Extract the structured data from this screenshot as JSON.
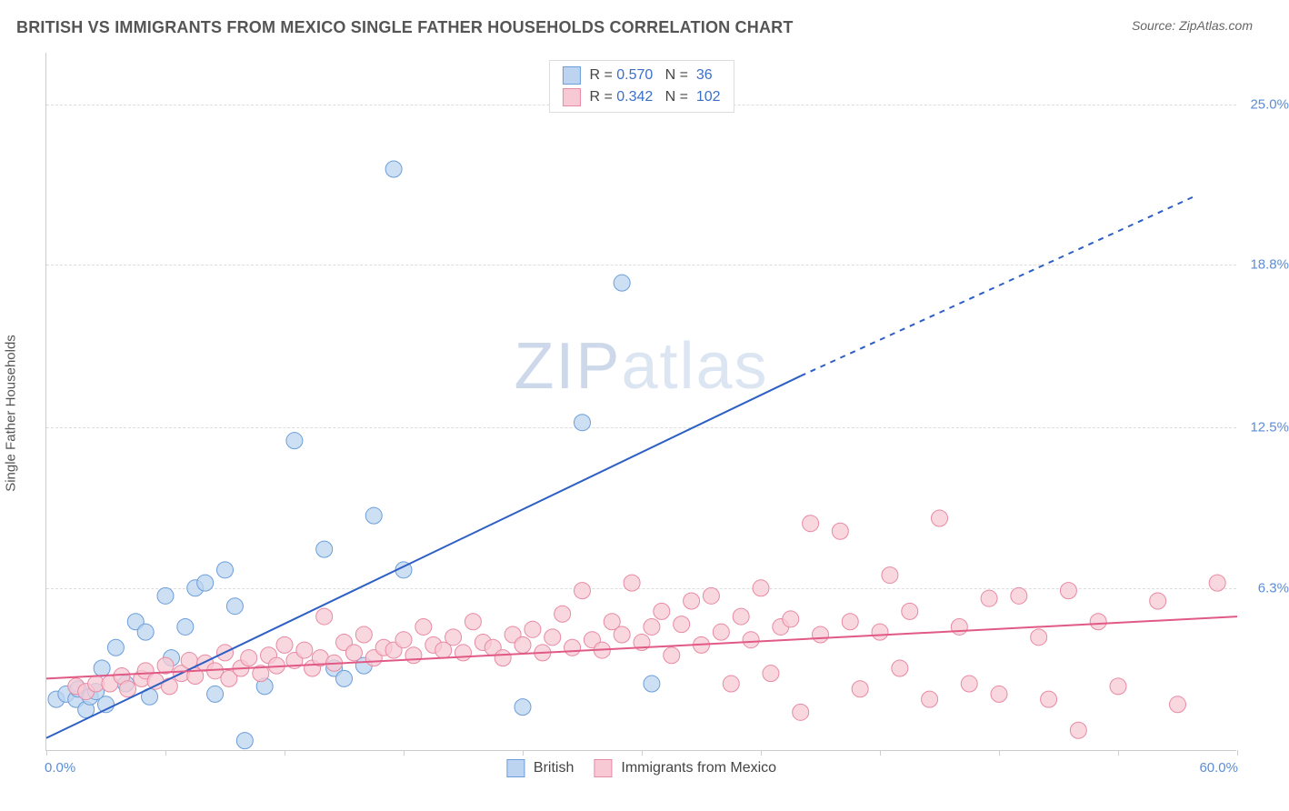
{
  "header": {
    "title": "BRITISH VS IMMIGRANTS FROM MEXICO SINGLE FATHER HOUSEHOLDS CORRELATION CHART",
    "source": "Source: ZipAtlas.com"
  },
  "chart": {
    "type": "scatter",
    "ylabel": "Single Father Households",
    "watermark_zip": "ZIP",
    "watermark_atlas": "atlas",
    "background_color": "#ffffff",
    "grid_color": "#dddddd",
    "axis_color": "#cccccc",
    "xlim": [
      0,
      60
    ],
    "ylim": [
      0,
      27
    ],
    "yticks": [
      {
        "v": 6.3,
        "label": "6.3%"
      },
      {
        "v": 12.5,
        "label": "12.5%"
      },
      {
        "v": 18.8,
        "label": "18.8%"
      },
      {
        "v": 25.0,
        "label": "25.0%"
      }
    ],
    "xtick_marks": [
      0,
      6,
      12,
      18,
      24,
      30,
      36,
      42,
      48,
      54,
      60
    ],
    "xlabel_start": "0.0%",
    "xlabel_end": "60.0%",
    "series": [
      {
        "id": "british",
        "label": "British",
        "marker_fill": "#bcd4ef",
        "marker_stroke": "#6b9edb",
        "marker_opacity": 0.75,
        "marker_r": 9,
        "line_color": "#2d5fc4",
        "line_width": 2,
        "R": "0.570",
        "N": "36",
        "trend": {
          "x1": 0,
          "y1": 0.5,
          "x2": 38,
          "y2": 14.5,
          "x_dash_from": 38,
          "x2d": 58,
          "y2d": 21.5
        },
        "points": [
          [
            0.5,
            2.0
          ],
          [
            1.0,
            2.2
          ],
          [
            1.5,
            2.0
          ],
          [
            1.6,
            2.4
          ],
          [
            2.0,
            1.6
          ],
          [
            2.2,
            2.1
          ],
          [
            2.5,
            2.3
          ],
          [
            2.8,
            3.2
          ],
          [
            3.0,
            1.8
          ],
          [
            3.5,
            4.0
          ],
          [
            4.0,
            2.6
          ],
          [
            4.5,
            5.0
          ],
          [
            5.0,
            4.6
          ],
          [
            5.2,
            2.1
          ],
          [
            6.0,
            6.0
          ],
          [
            6.3,
            3.6
          ],
          [
            7.0,
            4.8
          ],
          [
            7.5,
            6.3
          ],
          [
            8.0,
            6.5
          ],
          [
            8.5,
            2.2
          ],
          [
            9.0,
            7.0
          ],
          [
            9.5,
            5.6
          ],
          [
            10.0,
            0.4
          ],
          [
            11.0,
            2.5
          ],
          [
            12.5,
            12.0
          ],
          [
            14.0,
            7.8
          ],
          [
            14.5,
            3.2
          ],
          [
            15.0,
            2.8
          ],
          [
            16.0,
            3.3
          ],
          [
            16.5,
            9.1
          ],
          [
            17.5,
            22.5
          ],
          [
            18.0,
            7.0
          ],
          [
            24.0,
            1.7
          ],
          [
            27.0,
            12.7
          ],
          [
            29.0,
            18.1
          ],
          [
            30.5,
            2.6
          ]
        ]
      },
      {
        "id": "mexico",
        "label": "Immigrants from Mexico",
        "marker_fill": "#f7c9d4",
        "marker_stroke": "#e88aa3",
        "marker_opacity": 0.75,
        "marker_r": 9,
        "line_color": "#e05a85",
        "line_width": 2,
        "R": "0.342",
        "N": "102",
        "trend": {
          "x1": 0,
          "y1": 2.8,
          "x2": 60,
          "y2": 5.2
        },
        "points": [
          [
            1.5,
            2.5
          ],
          [
            2.0,
            2.3
          ],
          [
            2.5,
            2.6
          ],
          [
            3.2,
            2.6
          ],
          [
            3.8,
            2.9
          ],
          [
            4.1,
            2.4
          ],
          [
            4.8,
            2.8
          ],
          [
            5.0,
            3.1
          ],
          [
            5.5,
            2.7
          ],
          [
            6.0,
            3.3
          ],
          [
            6.2,
            2.5
          ],
          [
            6.8,
            3.0
          ],
          [
            7.2,
            3.5
          ],
          [
            7.5,
            2.9
          ],
          [
            8.0,
            3.4
          ],
          [
            8.5,
            3.1
          ],
          [
            9.0,
            3.8
          ],
          [
            9.2,
            2.8
          ],
          [
            9.8,
            3.2
          ],
          [
            10.2,
            3.6
          ],
          [
            10.8,
            3.0
          ],
          [
            11.2,
            3.7
          ],
          [
            11.6,
            3.3
          ],
          [
            12.0,
            4.1
          ],
          [
            12.5,
            3.5
          ],
          [
            13.0,
            3.9
          ],
          [
            13.4,
            3.2
          ],
          [
            13.8,
            3.6
          ],
          [
            14.0,
            5.2
          ],
          [
            14.5,
            3.4
          ],
          [
            15.0,
            4.2
          ],
          [
            15.5,
            3.8
          ],
          [
            16.0,
            4.5
          ],
          [
            16.5,
            3.6
          ],
          [
            17.0,
            4.0
          ],
          [
            17.5,
            3.9
          ],
          [
            18.0,
            4.3
          ],
          [
            18.5,
            3.7
          ],
          [
            19.0,
            4.8
          ],
          [
            19.5,
            4.1
          ],
          [
            20.0,
            3.9
          ],
          [
            20.5,
            4.4
          ],
          [
            21.0,
            3.8
          ],
          [
            21.5,
            5.0
          ],
          [
            22.0,
            4.2
          ],
          [
            22.5,
            4.0
          ],
          [
            23.0,
            3.6
          ],
          [
            23.5,
            4.5
          ],
          [
            24.0,
            4.1
          ],
          [
            24.5,
            4.7
          ],
          [
            25.0,
            3.8
          ],
          [
            25.5,
            4.4
          ],
          [
            26.0,
            5.3
          ],
          [
            26.5,
            4.0
          ],
          [
            27.0,
            6.2
          ],
          [
            27.5,
            4.3
          ],
          [
            28.0,
            3.9
          ],
          [
            28.5,
            5.0
          ],
          [
            29.0,
            4.5
          ],
          [
            29.5,
            6.5
          ],
          [
            30.0,
            4.2
          ],
          [
            30.5,
            4.8
          ],
          [
            31.0,
            5.4
          ],
          [
            31.5,
            3.7
          ],
          [
            32.0,
            4.9
          ],
          [
            32.5,
            5.8
          ],
          [
            33.0,
            4.1
          ],
          [
            33.5,
            6.0
          ],
          [
            34.0,
            4.6
          ],
          [
            34.5,
            2.6
          ],
          [
            35.0,
            5.2
          ],
          [
            35.5,
            4.3
          ],
          [
            36.0,
            6.3
          ],
          [
            36.5,
            3.0
          ],
          [
            37.0,
            4.8
          ],
          [
            37.5,
            5.1
          ],
          [
            38.0,
            1.5
          ],
          [
            38.5,
            8.8
          ],
          [
            39.0,
            4.5
          ],
          [
            40.0,
            8.5
          ],
          [
            40.5,
            5.0
          ],
          [
            41.0,
            2.4
          ],
          [
            42.0,
            4.6
          ],
          [
            42.5,
            6.8
          ],
          [
            43.0,
            3.2
          ],
          [
            43.5,
            5.4
          ],
          [
            44.5,
            2.0
          ],
          [
            45.0,
            9.0
          ],
          [
            46.0,
            4.8
          ],
          [
            46.5,
            2.6
          ],
          [
            47.5,
            5.9
          ],
          [
            48.0,
            2.2
          ],
          [
            49.0,
            6.0
          ],
          [
            50.0,
            4.4
          ],
          [
            50.5,
            2.0
          ],
          [
            51.5,
            6.2
          ],
          [
            52.0,
            0.8
          ],
          [
            53.0,
            5.0
          ],
          [
            54.0,
            2.5
          ],
          [
            56.0,
            5.8
          ],
          [
            57.0,
            1.8
          ],
          [
            59.0,
            6.5
          ]
        ]
      }
    ]
  }
}
